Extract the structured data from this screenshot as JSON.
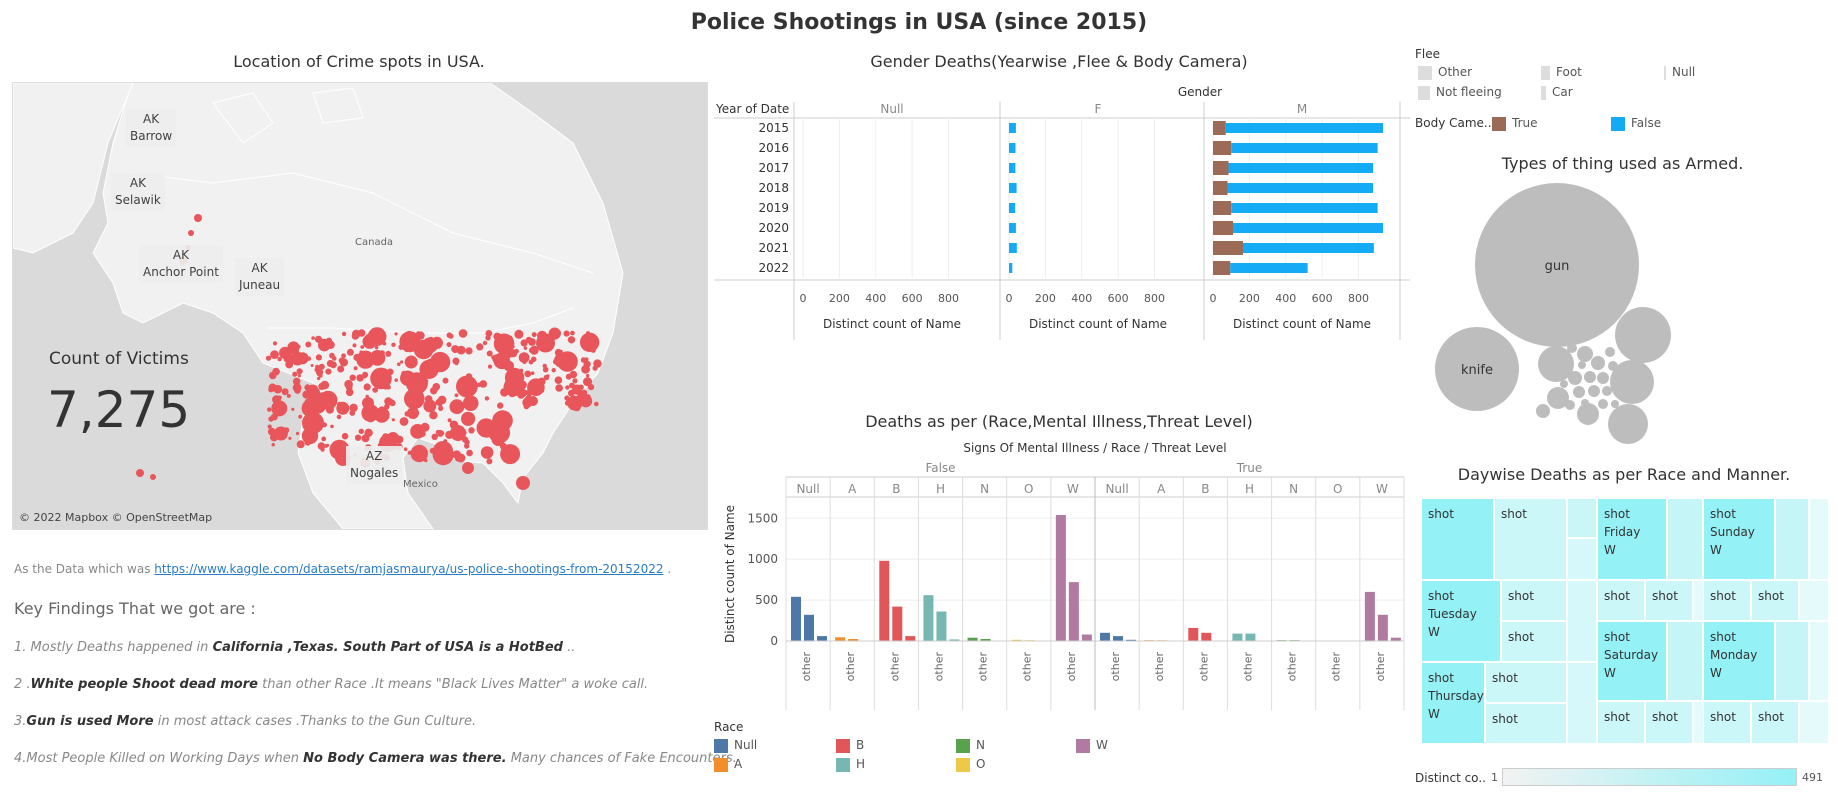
{
  "title": "Police Shootings in USA (since 2015)",
  "map": {
    "title": "Location of Crime spots in USA.",
    "labels": [
      {
        "state": "AK",
        "city": "Barrow"
      },
      {
        "state": "AK",
        "city": "Selawik"
      },
      {
        "state": "AK",
        "city": "Anchor Point"
      },
      {
        "state": "AK",
        "city": "Juneau"
      },
      {
        "state": "AZ",
        "city": "Nogales"
      }
    ],
    "country_labels": [
      "Canada",
      "Mexico"
    ],
    "count_label": "Count of Victims",
    "count_value": "7,275",
    "attribution": "© 2022 Mapbox © OpenStreetMap",
    "dot_color": "#e8555a"
  },
  "text": {
    "source_prefix": "As the Data which was",
    "source_link": "https://www.kaggle.com/datasets/ramjasmaurya/us-police-shootings-from-20152022",
    "source_suffix": ".",
    "findings_heading": "Key Findings That we got are :",
    "f1_a": "1. Mostly Deaths happened in",
    "f1_b": "California ,Texas. South Part of USA is a HotBed",
    "f1_c": "..",
    "f2_a": "2 .",
    "f2_b": "White people Shoot dead more",
    "f2_c": "than other Race .It means \"Black Lives Matter\" a woke call.",
    "f3_a": "3.",
    "f3_b": "Gun is used More",
    "f3_c": "in most attack cases .Thanks to the Gun Culture.",
    "f4_a": "4.Most People Killed on Working Days when",
    "f4_b": "No Body Camera was there.",
    "f4_c": "Many chances of Fake Encounters."
  },
  "legends": {
    "flee_title": "Flee",
    "flee_items": [
      "Other",
      "Foot",
      "Null",
      "Not fleeing",
      "Car"
    ],
    "bodycam_title": "Body Came..",
    "bodycam_items": [
      "True",
      "False"
    ],
    "race_title": "Race",
    "race_items": [
      "Null",
      "B",
      "N",
      "W",
      "A",
      "H",
      "O"
    ],
    "distinct_label": "Distinct co..",
    "distinct_min": "1",
    "distinct_max": "491"
  },
  "colors": {
    "true_brown": "#9c6b58",
    "false_blue": "#14aaf5",
    "Null": "#4e79a7",
    "A": "#f28e2b",
    "B": "#e15759",
    "H": "#76b7b2",
    "N": "#59a14f",
    "O": "#edc948",
    "W": "#b07aa1",
    "treemap": "#94f1f6"
  },
  "chart_data": [
    {
      "type": "bar",
      "title": "Gender Deaths(Yearwise ,Flee & Body Camera)",
      "header": "Gender",
      "row_header": "Year of Date",
      "categories": [
        "2015",
        "2016",
        "2017",
        "2018",
        "2019",
        "2020",
        "2021",
        "2022"
      ],
      "panels": [
        "Null",
        "F",
        "M"
      ],
      "xlabel": "Distinct count of Name",
      "xticks": [
        0,
        200,
        400,
        600,
        800
      ],
      "xlim": [
        0,
        990
      ],
      "series": [
        {
          "name": "True",
          "panel": "M",
          "values": [
            70,
            100,
            85,
            80,
            100,
            110,
            165,
            95
          ]
        },
        {
          "name": "False",
          "panel": "M",
          "values": [
            935,
            905,
            880,
            880,
            905,
            935,
            885,
            520
          ]
        },
        {
          "name": "False",
          "panel": "F",
          "values": [
            38,
            36,
            35,
            42,
            34,
            38,
            43,
            18
          ]
        }
      ]
    },
    {
      "type": "bar",
      "title": "Deaths as per (Race,Mental Illness,Threat Level)",
      "header": "Signs Of Mental Illness  /  Race  /  Threat Level",
      "ylabel": "Distinct count of Name",
      "yticks": [
        0,
        500,
        1000,
        1500
      ],
      "ylim": [
        0,
        1650
      ],
      "tick_label": "other",
      "groups": [
        {
          "mental_illness": "False",
          "race": "Null",
          "values": [
            540,
            320,
            60
          ]
        },
        {
          "mental_illness": "False",
          "race": "A",
          "values": [
            45,
            25
          ]
        },
        {
          "mental_illness": "False",
          "race": "B",
          "values": [
            980,
            420,
            60
          ]
        },
        {
          "mental_illness": "False",
          "race": "H",
          "values": [
            560,
            360,
            20
          ]
        },
        {
          "mental_illness": "False",
          "race": "N",
          "values": [
            40,
            25
          ]
        },
        {
          "mental_illness": "False",
          "race": "O",
          "values": [
            15,
            10
          ]
        },
        {
          "mental_illness": "False",
          "race": "W",
          "values": [
            1540,
            720,
            80
          ]
        },
        {
          "mental_illness": "True",
          "race": "Null",
          "values": [
            100,
            60,
            15
          ]
        },
        {
          "mental_illness": "True",
          "race": "A",
          "values": [
            10,
            8
          ]
        },
        {
          "mental_illness": "True",
          "race": "B",
          "values": [
            160,
            100
          ]
        },
        {
          "mental_illness": "True",
          "race": "H",
          "values": [
            90,
            90
          ]
        },
        {
          "mental_illness": "True",
          "race": "N",
          "values": [
            10,
            10
          ]
        },
        {
          "mental_illness": "True",
          "race": "O",
          "values": [
            6
          ]
        },
        {
          "mental_illness": "True",
          "race": "W",
          "values": [
            600,
            320,
            40
          ]
        }
      ]
    },
    {
      "type": "bubble",
      "title": "Types of thing used as Armed.",
      "labels": [
        "gun",
        "knife"
      ]
    },
    {
      "type": "treemap",
      "title": "Daywise Deaths as per Race and Manner.",
      "cells": [
        {
          "manner": "shot"
        },
        {
          "manner": "shot"
        },
        {
          "manner": "shot",
          "day": "Friday",
          "race": "W"
        },
        {
          "manner": "shot",
          "day": "Sunday",
          "race": "W"
        },
        {
          "manner": "shot",
          "day": "Tuesday",
          "race": "W"
        },
        {
          "manner": "shot"
        },
        {
          "manner": "shot"
        },
        {
          "manner": "shot"
        },
        {
          "manner": "shot"
        },
        {
          "manner": "shot"
        },
        {
          "manner": "shot",
          "day": "Saturday",
          "race": "W"
        },
        {
          "manner": "shot",
          "day": "Monday",
          "race": "W"
        },
        {
          "manner": "shot",
          "day": "Thursday",
          "race": "W"
        },
        {
          "manner": "shot"
        },
        {
          "manner": "shot"
        },
        {
          "manner": "shot"
        },
        {
          "manner": "shot"
        },
        {
          "manner": "shot"
        },
        {
          "manner": "shot"
        }
      ]
    }
  ]
}
